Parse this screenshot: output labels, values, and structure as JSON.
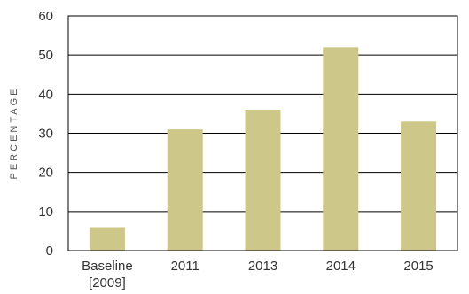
{
  "chart_data": {
    "type": "bar",
    "categories": [
      {
        "lines": [
          "Baseline",
          "[2009]"
        ]
      },
      {
        "lines": [
          "2011"
        ]
      },
      {
        "lines": [
          "2013"
        ]
      },
      {
        "lines": [
          "2014"
        ]
      },
      {
        "lines": [
          "2015"
        ]
      }
    ],
    "values": [
      6,
      31,
      36,
      52,
      33
    ],
    "yticks": [
      "0",
      "10",
      "20",
      "30",
      "40",
      "50",
      "60"
    ],
    "ylabel": "PERCENTAGE",
    "xlabel": "",
    "title": "",
    "ylim": [
      0,
      60
    ],
    "grid": true,
    "bar_color": "#cdc78a",
    "grid_color": "#000000"
  }
}
